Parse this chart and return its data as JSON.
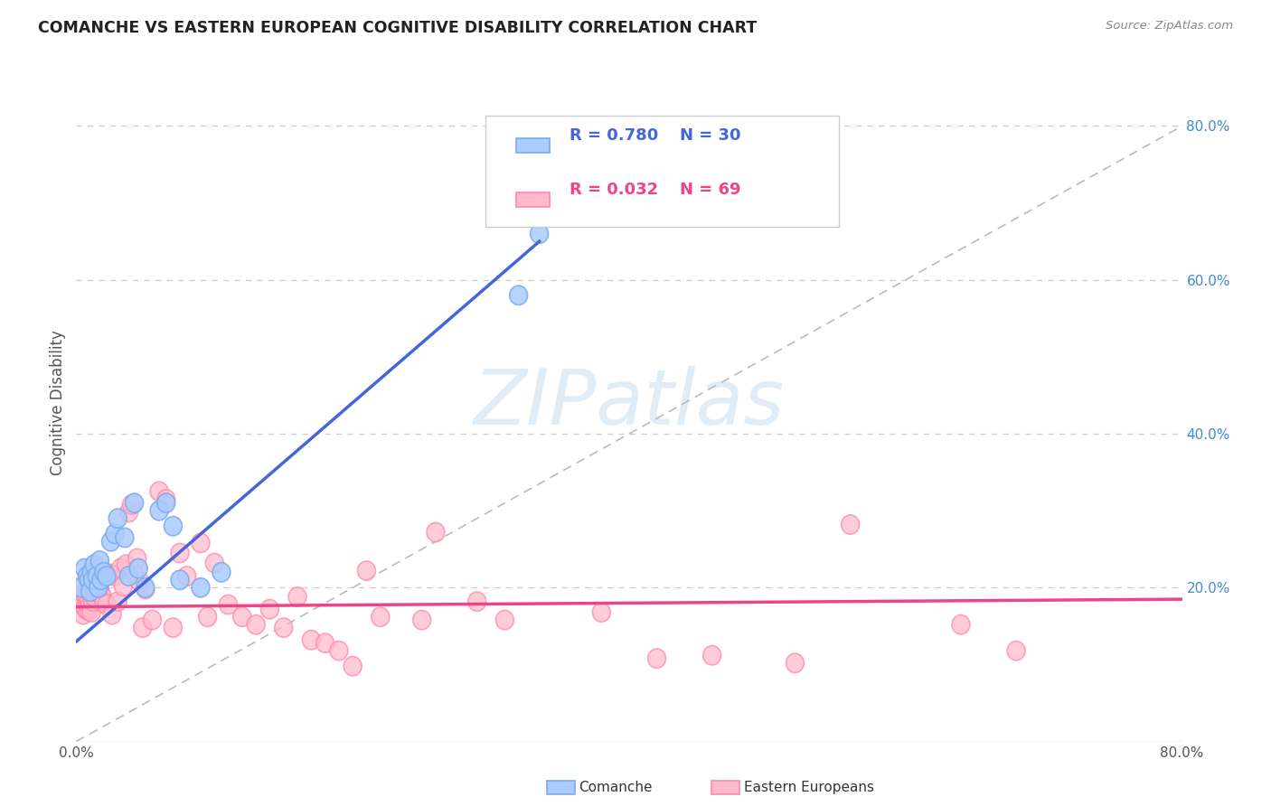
{
  "title": "COMANCHE VS EASTERN EUROPEAN COGNITIVE DISABILITY CORRELATION CHART",
  "source": "Source: ZipAtlas.com",
  "ylabel": "Cognitive Disability",
  "xlim": [
    0.0,
    0.8
  ],
  "ylim": [
    0.0,
    0.88
  ],
  "xtick_labels": [
    "0.0%",
    "",
    "",
    "",
    "",
    "80.0%"
  ],
  "xtick_vals": [
    0.0,
    0.16,
    0.32,
    0.48,
    0.64,
    0.8
  ],
  "ytick_labels": [
    "20.0%",
    "40.0%",
    "60.0%",
    "80.0%"
  ],
  "ytick_vals": [
    0.2,
    0.4,
    0.6,
    0.8
  ],
  "grid_color": "#cccccc",
  "background_color": "#ffffff",
  "comanche_color": "#7aaaee",
  "comanche_fill": "#aaccff",
  "eastern_color": "#ff88aa",
  "eastern_fill": "#ffbbcc",
  "line_blue": "#4466dd",
  "line_pink": "#ee4488",
  "comanche_R": 0.78,
  "comanche_N": 30,
  "eastern_R": 0.032,
  "eastern_N": 69,
  "legend_comanche_label": "Comanche",
  "legend_eastern_label": "Eastern Europeans",
  "watermark_text": "ZIPatlas",
  "comanche_x": [
    0.004,
    0.006,
    0.008,
    0.009,
    0.01,
    0.011,
    0.012,
    0.013,
    0.015,
    0.016,
    0.017,
    0.018,
    0.02,
    0.022,
    0.025,
    0.028,
    0.03,
    0.035,
    0.038,
    0.042,
    0.045,
    0.05,
    0.06,
    0.065,
    0.07,
    0.075,
    0.09,
    0.105,
    0.32,
    0.335
  ],
  "comanche_y": [
    0.2,
    0.225,
    0.215,
    0.21,
    0.195,
    0.22,
    0.21,
    0.23,
    0.215,
    0.2,
    0.235,
    0.21,
    0.22,
    0.215,
    0.26,
    0.27,
    0.29,
    0.265,
    0.215,
    0.31,
    0.225,
    0.2,
    0.3,
    0.31,
    0.28,
    0.21,
    0.2,
    0.22,
    0.58,
    0.66
  ],
  "eastern_x": [
    0.002,
    0.003,
    0.004,
    0.005,
    0.006,
    0.006,
    0.007,
    0.007,
    0.008,
    0.009,
    0.009,
    0.01,
    0.011,
    0.012,
    0.013,
    0.014,
    0.015,
    0.016,
    0.017,
    0.018,
    0.019,
    0.02,
    0.022,
    0.024,
    0.026,
    0.028,
    0.03,
    0.032,
    0.034,
    0.036,
    0.038,
    0.04,
    0.042,
    0.044,
    0.046,
    0.048,
    0.05,
    0.055,
    0.06,
    0.065,
    0.07,
    0.075,
    0.08,
    0.09,
    0.095,
    0.1,
    0.11,
    0.12,
    0.13,
    0.14,
    0.15,
    0.16,
    0.17,
    0.18,
    0.19,
    0.2,
    0.21,
    0.22,
    0.25,
    0.26,
    0.29,
    0.31,
    0.38,
    0.42,
    0.46,
    0.52,
    0.56,
    0.64,
    0.68
  ],
  "eastern_y": [
    0.2,
    0.185,
    0.178,
    0.165,
    0.192,
    0.175,
    0.188,
    0.172,
    0.18,
    0.17,
    0.185,
    0.178,
    0.168,
    0.182,
    0.188,
    0.195,
    0.202,
    0.215,
    0.198,
    0.192,
    0.188,
    0.18,
    0.178,
    0.218,
    0.165,
    0.215,
    0.182,
    0.225,
    0.202,
    0.23,
    0.298,
    0.308,
    0.218,
    0.238,
    0.208,
    0.148,
    0.198,
    0.158,
    0.325,
    0.315,
    0.148,
    0.245,
    0.215,
    0.258,
    0.162,
    0.232,
    0.178,
    0.162,
    0.152,
    0.172,
    0.148,
    0.188,
    0.132,
    0.128,
    0.118,
    0.098,
    0.222,
    0.162,
    0.158,
    0.272,
    0.182,
    0.158,
    0.168,
    0.108,
    0.112,
    0.102,
    0.282,
    0.152,
    0.118
  ]
}
